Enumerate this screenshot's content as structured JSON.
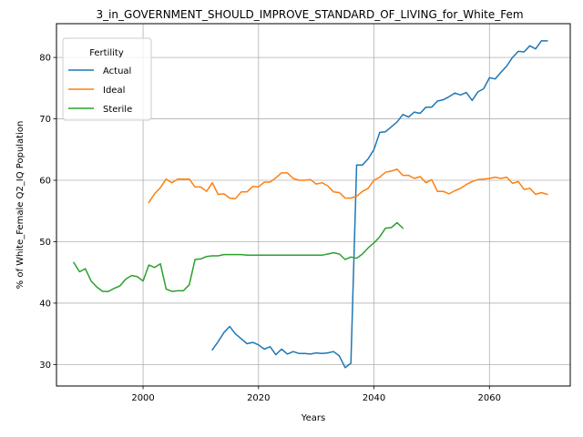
{
  "chart_data": {
    "type": "line",
    "title": "3_in_GOVERNMENT_SHOULD_IMPROVE_STANDARD_OF_LIVING_for_White_Fem",
    "xlabel": "Years",
    "ylabel": "% of White_Female Q2_IQ Population",
    "xlim": [
      1985,
      2074
    ],
    "ylim": [
      26.5,
      85.5
    ],
    "xticks": [
      2000,
      2020,
      2040,
      2060
    ],
    "yticks": [
      30,
      40,
      50,
      60,
      70,
      80
    ],
    "grid": true,
    "legend": {
      "title": "Fertility",
      "position": "upper-left"
    },
    "series": [
      {
        "name": "Actual",
        "color": "#1f77b4",
        "x": [
          2012,
          2013,
          2014,
          2015,
          2016,
          2017,
          2018,
          2019,
          2020,
          2021,
          2022,
          2023,
          2024,
          2025,
          2026,
          2027,
          2028,
          2029,
          2030,
          2031,
          2032,
          2033,
          2034,
          2035,
          2036,
          2037,
          2038,
          2039,
          2040,
          2041,
          2042,
          2043,
          2044,
          2045,
          2046,
          2047,
          2048,
          2049,
          2050,
          2051,
          2052,
          2053,
          2054,
          2055,
          2056,
          2057,
          2058,
          2059,
          2060,
          2061,
          2062,
          2063,
          2064,
          2065,
          2066,
          2067,
          2068,
          2069,
          2070
        ],
        "values": [
          32.4,
          33.7,
          35.2,
          36.2,
          35.0,
          34.2,
          33.4,
          33.6,
          33.2,
          32.5,
          32.9,
          31.6,
          32.5,
          31.7,
          32.1,
          31.8,
          31.8,
          31.7,
          31.9,
          31.8,
          31.9,
          32.1,
          31.4,
          29.5,
          30.2,
          62.5,
          62.5,
          63.5,
          65.0,
          67.8,
          67.9,
          68.7,
          69.5,
          70.7,
          70.3,
          71.1,
          70.9,
          71.9,
          71.9,
          72.9,
          73.1,
          73.6,
          74.2,
          73.9,
          74.3,
          73.0,
          74.4,
          74.9,
          76.7,
          76.5,
          77.6,
          78.6,
          80.0,
          81.0,
          80.9,
          81.9,
          81.4,
          82.7,
          82.7
        ]
      },
      {
        "name": "Ideal",
        "color": "#ff7f0e",
        "x": [
          2001,
          2002,
          2003,
          2004,
          2005,
          2006,
          2007,
          2008,
          2009,
          2010,
          2011,
          2012,
          2013,
          2014,
          2015,
          2016,
          2017,
          2018,
          2019,
          2020,
          2021,
          2022,
          2023,
          2024,
          2025,
          2026,
          2027,
          2028,
          2029,
          2030,
          2031,
          2032,
          2033,
          2034,
          2035,
          2036,
          2037,
          2038,
          2039,
          2040,
          2041,
          2042,
          2043,
          2044,
          2045,
          2046,
          2047,
          2048,
          2049,
          2050,
          2051,
          2052,
          2053,
          2054,
          2055,
          2056,
          2057,
          2058,
          2059,
          2060,
          2061,
          2062,
          2063,
          2064,
          2065,
          2066,
          2067,
          2068,
          2069,
          2070
        ],
        "values": [
          56.4,
          57.8,
          58.8,
          60.2,
          59.6,
          60.2,
          60.2,
          60.2,
          58.9,
          58.9,
          58.2,
          59.6,
          57.7,
          57.8,
          57.1,
          57.0,
          58.1,
          58.1,
          59.0,
          58.9,
          59.7,
          59.7,
          60.4,
          61.2,
          61.2,
          60.3,
          60.0,
          60.0,
          60.1,
          59.4,
          59.6,
          59.1,
          58.1,
          58.0,
          57.1,
          57.1,
          57.4,
          58.2,
          58.7,
          60.0,
          60.5,
          61.3,
          61.5,
          61.8,
          60.8,
          60.8,
          60.3,
          60.6,
          59.6,
          60.1,
          58.2,
          58.2,
          57.8,
          58.3,
          58.7,
          59.3,
          59.8,
          60.1,
          60.2,
          60.3,
          60.5,
          60.3,
          60.5,
          59.5,
          59.8,
          58.5,
          58.7,
          57.7,
          58.0,
          57.7
        ]
      },
      {
        "name": "Sterile",
        "color": "#2ca02c",
        "x": [
          1988,
          1989,
          1990,
          1991,
          1992,
          1993,
          1994,
          1995,
          1996,
          1997,
          1998,
          1999,
          2000,
          2001,
          2002,
          2003,
          2004,
          2005,
          2006,
          2007,
          2008,
          2009,
          2010,
          2011,
          2012,
          2013,
          2014,
          2015,
          2016,
          2017,
          2018,
          2019,
          2020,
          2021,
          2022,
          2023,
          2024,
          2025,
          2026,
          2027,
          2028,
          2029,
          2030,
          2031,
          2032,
          2033,
          2034,
          2035,
          2036,
          2037,
          2038,
          2039,
          2040,
          2041,
          2042,
          2043,
          2044,
          2045
        ],
        "values": [
          46.6,
          45.1,
          45.6,
          43.6,
          42.6,
          41.9,
          41.9,
          42.4,
          42.8,
          43.9,
          44.5,
          44.3,
          43.6,
          46.2,
          45.8,
          46.4,
          42.3,
          41.9,
          42.0,
          42.0,
          43.0,
          47.1,
          47.2,
          47.6,
          47.7,
          47.7,
          47.9,
          47.9,
          47.9,
          47.9,
          47.8,
          47.8,
          47.8,
          47.8,
          47.8,
          47.8,
          47.8,
          47.8,
          47.8,
          47.8,
          47.8,
          47.8,
          47.8,
          47.8,
          48.0,
          48.2,
          48.0,
          47.1,
          47.5,
          47.3,
          48.0,
          49.0,
          49.8,
          50.8,
          52.2,
          52.3,
          53.1,
          52.2
        ]
      }
    ]
  }
}
